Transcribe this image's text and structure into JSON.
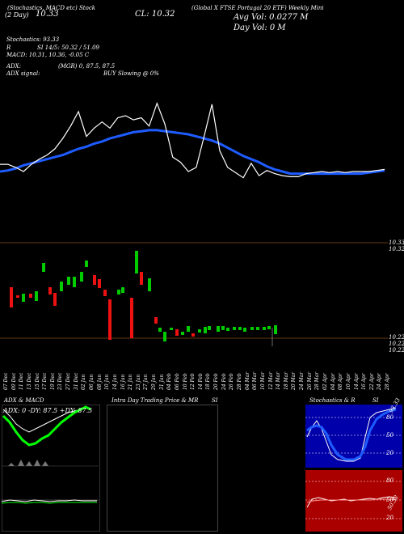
{
  "header": {
    "title_line": "(Global X FTSE Portugal 20 ETF) Weekly Mini",
    "indicators": "(Stochastics, MACD etc) Stock",
    "top_left": "(2 Day)",
    "chart_val": "10.33",
    "close_label": "CL: 10.32",
    "avg_vol": "Avg Vol: 0.0277 M",
    "day_vol": "Day Vol: 0 M"
  },
  "stats": {
    "stochastics": "Stochastics: 93.33",
    "r_line": "R",
    "si": "SI 14/5: 50.32 / 51.09",
    "macd": "MACD: 10.31, 10.36, -0.05 C",
    "adx": "ADX:",
    "adx_mgr": "(MGR) 0, 87.5, 87.5",
    "adx_signal": "ADX signal:",
    "buy_signal": "BUY Slowing @ 0%"
  },
  "price_axis": {
    "top_labels": [
      "10.33",
      "10.32"
    ],
    "bottom_labels": [
      "10.22",
      "10.22",
      "10.22"
    ]
  },
  "dates": [
    "07 Dec",
    "09 Dec",
    "11 Dec",
    "13 Dec",
    "15 Dec",
    "17 Dec",
    "19 Dec",
    "23 Dec",
    "27 Dec",
    "31 Dec",
    "02 Jan",
    "06 Jan",
    "08 Jan",
    "10 Jan",
    "14 Jan",
    "16 Jan",
    "21 Jan",
    "23 Jan",
    "27 Jan",
    "29 Jan",
    "31 Jan",
    "04 Feb",
    "06 Feb",
    "10 Feb",
    "12 Feb",
    "14 Feb",
    "18 Feb",
    "20 Feb",
    "24 Feb",
    "26 Feb",
    "28 Feb",
    "04 Mar",
    "06 Mar",
    "10 Mar",
    "12 Mar",
    "14 Mar",
    "18 Mar",
    "20 Mar",
    "24 Mar",
    "26 Mar",
    "28 Mar",
    "02 Apr",
    "04 Apr",
    "08 Apr",
    "10 Apr",
    "14 Apr",
    "16 Apr",
    "22 Apr",
    "24 Apr",
    "28 Apr"
  ],
  "panels": {
    "adx_title": "ADX & MACD",
    "adx_readout": "ADX: 0 -DY: 87.5 +DY: 87.5",
    "intraday_title": "Intra Day Trading Price & MR",
    "intraday_si": "SI",
    "stoch_title": "Stochastics & R",
    "stoch_si": "SI",
    "stoch_val": "93.33",
    "stoch_levels": [
      "80",
      "50",
      "20"
    ],
    "rsi_levels": [
      "80",
      "50",
      "20"
    ],
    "rsi_val": "50.32"
  },
  "colors": {
    "background": "#000000",
    "price_line": "#ffffff",
    "ema_line": "#1e5cff",
    "up_candle": "#00cc00",
    "down_candle": "#ee1111",
    "axis_line": "#c8722a",
    "stoch_bg": "#0000aa",
    "rsi_bg": "#aa0000",
    "adx_plus": "#00ff00",
    "adx_minus": "#ffffff"
  },
  "chart_data": {
    "type": "line",
    "series": [
      {
        "values": [
          10.325,
          10.325,
          10.322,
          10.318,
          10.325,
          10.33,
          10.334,
          10.34,
          10.35,
          10.362,
          10.376,
          10.352,
          10.36,
          10.366,
          10.36,
          10.37,
          10.372,
          10.368,
          10.37,
          10.362,
          10.384,
          10.364,
          10.332,
          10.327,
          10.318,
          10.322,
          10.352,
          10.383,
          10.338,
          10.322,
          10.317,
          10.312,
          10.326,
          10.314,
          10.319,
          10.316,
          10.314,
          10.313,
          10.313,
          10.316,
          10.317,
          10.318,
          10.317,
          10.318,
          10.317,
          10.318,
          10.318,
          10.318,
          10.319,
          10.32
        ]
      },
      {
        "values": [
          10.318,
          10.319,
          10.321,
          10.324,
          10.326,
          10.328,
          10.33,
          10.332,
          10.334,
          10.337,
          10.34,
          10.342,
          10.345,
          10.347,
          10.35,
          10.352,
          10.354,
          10.356,
          10.357,
          10.358,
          10.358,
          10.357,
          10.356,
          10.355,
          10.354,
          10.352,
          10.35,
          10.348,
          10.345,
          10.341,
          10.337,
          10.333,
          10.33,
          10.327,
          10.323,
          10.32,
          10.318,
          10.316,
          10.316,
          10.316,
          10.316,
          10.316,
          10.316,
          10.316,
          10.316,
          10.316,
          10.316,
          10.317,
          10.318,
          10.319
        ]
      }
    ]
  }
}
